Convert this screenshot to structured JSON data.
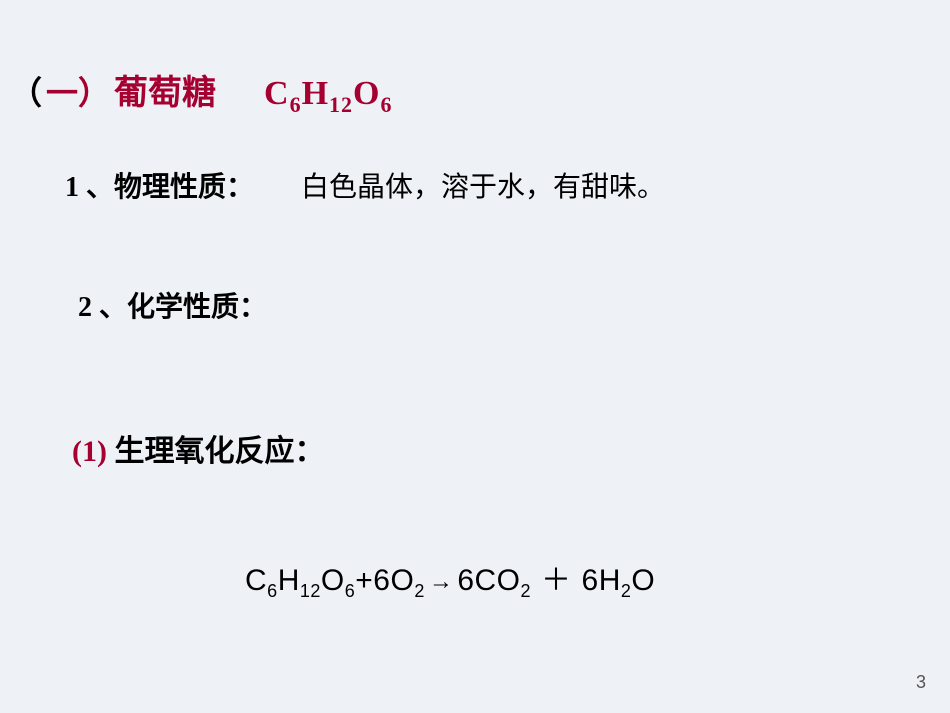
{
  "colors": {
    "background": "#eef2f7",
    "accent": "#a60030",
    "text": "#000000",
    "pagenum": "#555555"
  },
  "fonts": {
    "cn": "SimSun",
    "latin_serif": "Times New Roman",
    "latin_sans": "Arial",
    "title_fontsize_pt": 34,
    "section_fontsize_pt": 28,
    "equation_fontsize_pt": 30,
    "pagenum_fontsize_pt": 18
  },
  "title": {
    "paren_open": "（",
    "number_cn": "一）",
    "name": "葡萄糖",
    "formula": {
      "C": "C",
      "c_sub": "6",
      "H": "H",
      "h_sub": "12",
      "O": "O",
      "o_sub": "6"
    }
  },
  "section1": {
    "number": "1",
    "sep": "、",
    "label": "物理性质：",
    "desc": "白色晶体，溶于水，有甜味。"
  },
  "section2": {
    "number": "2",
    "sep": "、",
    "label": "化学性质："
  },
  "sub1": {
    "num": "(1)",
    "label": " 生理氧化反应："
  },
  "equation": {
    "lhs1": {
      "C": "C",
      "c": "6",
      "H": "H",
      "h": "12",
      "O": "O",
      "o": "6"
    },
    "plus1": "+",
    "lhs2_coef": "6",
    "lhs2": {
      "O": "O",
      "o": "2"
    },
    "arrow": "→",
    "rhs1_coef": "6",
    "rhs1": {
      "C": "CO",
      "c": "2"
    },
    "plus2": "＋",
    "rhs2_coef": "6",
    "rhs2": {
      "H": "H",
      "h": "2",
      "O": "O"
    }
  },
  "page_number": "3"
}
